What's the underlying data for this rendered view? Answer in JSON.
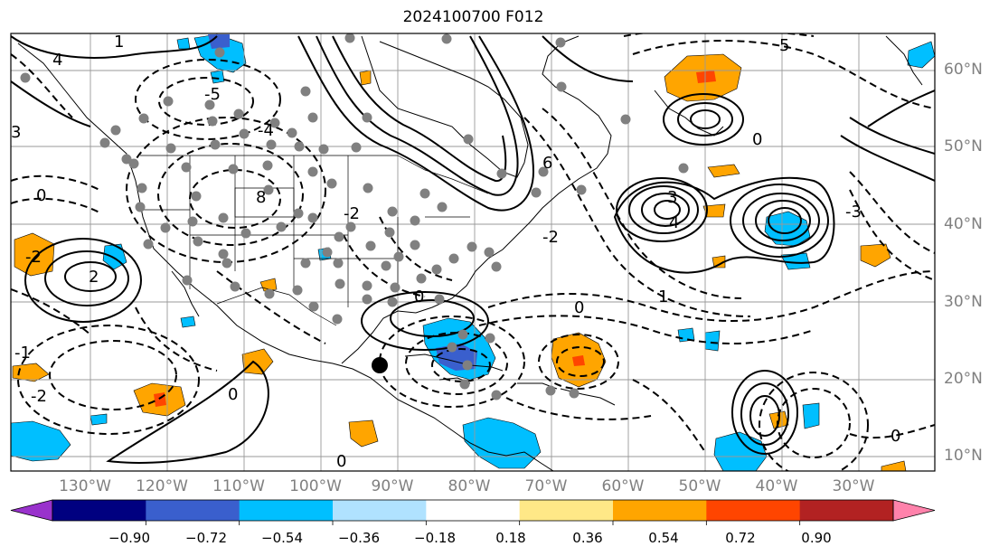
{
  "title": "2024100700 F012",
  "lat_labels": [
    "60°N",
    "50°N",
    "40°N",
    "30°N",
    "20°N",
    "10°N"
  ],
  "lon_labels": [
    "130°W",
    "120°W",
    "110°W",
    "100°W",
    "90°W",
    "80°W",
    "70°W",
    "60°W",
    "50°W",
    "40°W",
    "30°W"
  ],
  "colorbar": {
    "ticks": [
      "−0.90",
      "−0.72",
      "−0.54",
      "−0.36",
      "−0.18",
      "0.18",
      "0.36",
      "0.54",
      "0.72",
      "0.90"
    ],
    "colors": [
      "#9932cc",
      "#000080",
      "#3a5fcd",
      "#00bfff",
      "#b0e2ff",
      "#ffffff",
      "#ffe887",
      "#ffa500",
      "#ff4500",
      "#b22222",
      "#ff82ab"
    ]
  },
  "contour_labels": [
    "0",
    "0",
    "0",
    "0",
    "0",
    "0",
    "0",
    "1",
    "1",
    "-1",
    "2",
    "-2",
    "-2",
    "-2",
    "-2",
    "3",
    "3",
    "-3",
    "4",
    "4",
    "-4",
    "5",
    "-5",
    "8",
    "6"
  ]
}
